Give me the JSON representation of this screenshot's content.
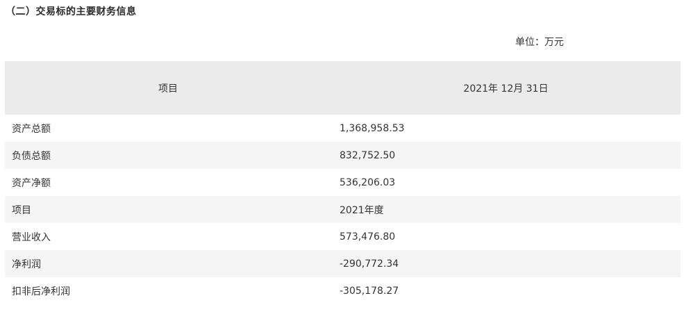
{
  "section_title": "（二）交易标的主要财务信息",
  "unit": "单位：万元",
  "table": {
    "header": [
      "项目",
      "2021年 12月 31日"
    ],
    "rows": [
      [
        "资产总额",
        "1,368,958.53"
      ],
      [
        "负债总额",
        "832,752.50"
      ],
      [
        "资产净额",
        "536,206.03"
      ],
      [
        "项目",
        "2021年度"
      ],
      [
        "营业收入",
        "573,476.80"
      ],
      [
        "净利润",
        "-290,772.34"
      ],
      [
        "扣非后净利润",
        "-305,178.27"
      ]
    ]
  }
}
